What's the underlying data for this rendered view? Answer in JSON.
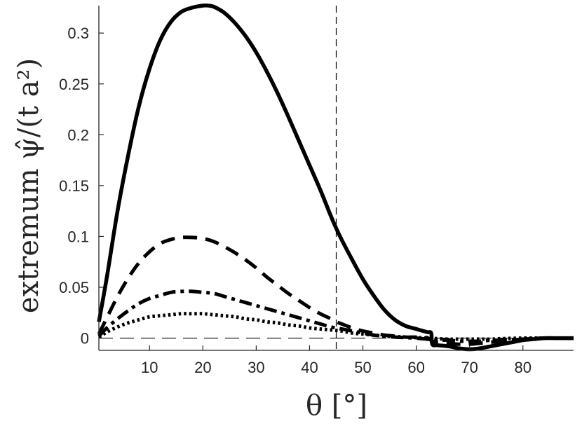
{
  "chart_data": {
    "type": "line",
    "title": "",
    "xlabel": "θ [°]",
    "ylabel": "extremum ψ̂/(t a²)",
    "xlim": [
      0.5,
      89.5
    ],
    "ylim": [
      -0.012,
      0.327
    ],
    "xticks": [
      10,
      20,
      30,
      40,
      50,
      60,
      70,
      80
    ],
    "xtick_labels": [
      "10",
      "20",
      "30",
      "40",
      "50",
      "60",
      "70",
      "80"
    ],
    "yticks": [
      0,
      0.05,
      0.1,
      0.15,
      0.2,
      0.25,
      0.3
    ],
    "ytick_labels": [
      "0",
      "0.05",
      "0.1",
      "0.15",
      "0.2",
      "0.25",
      "0.3"
    ],
    "grid": false,
    "legend": "none",
    "reference_lines": [
      {
        "orientation": "vertical",
        "value": 45,
        "style": "dashed-thin"
      },
      {
        "orientation": "horizontal",
        "value": 0,
        "style": "dashed-thin"
      }
    ],
    "series": [
      {
        "style": "solid",
        "x": [
          0.5,
          2,
          4,
          6,
          8,
          10,
          12,
          14,
          16,
          18,
          20,
          21,
          22,
          24,
          26,
          28,
          30,
          32,
          34,
          36,
          38,
          40,
          42,
          44,
          45,
          46,
          48,
          50,
          52,
          54,
          56,
          58,
          60,
          62,
          62.8,
          63,
          64,
          66,
          68,
          70,
          72,
          74,
          76,
          78,
          80,
          82,
          84,
          86,
          89.5
        ],
        "y": [
          0.016,
          0.06,
          0.125,
          0.18,
          0.228,
          0.265,
          0.293,
          0.311,
          0.321,
          0.325,
          0.327,
          0.327,
          0.326,
          0.32,
          0.31,
          0.297,
          0.281,
          0.262,
          0.241,
          0.218,
          0.194,
          0.17,
          0.146,
          0.12,
          0.108,
          0.097,
          0.077,
          0.058,
          0.042,
          0.028,
          0.018,
          0.012,
          0.009,
          0.006,
          0.005,
          -0.006,
          -0.007,
          -0.008,
          -0.01,
          -0.011,
          -0.01,
          -0.008,
          -0.006,
          -0.004,
          -0.002,
          -0.001,
          0,
          0,
          0
        ]
      },
      {
        "style": "dashed",
        "x": [
          0.5,
          2,
          4,
          6,
          8,
          10,
          12,
          14,
          16,
          18,
          20,
          22,
          24,
          26,
          28,
          30,
          32,
          34,
          36,
          38,
          40,
          42,
          44,
          45,
          46,
          48,
          50,
          52,
          54,
          56,
          58,
          60,
          62,
          63,
          64,
          66,
          68,
          70,
          72,
          74,
          76,
          78,
          80,
          84,
          89.5
        ],
        "y": [
          0.004,
          0.02,
          0.041,
          0.059,
          0.074,
          0.085,
          0.093,
          0.097,
          0.099,
          0.099,
          0.098,
          0.095,
          0.09,
          0.084,
          0.077,
          0.069,
          0.06,
          0.052,
          0.044,
          0.037,
          0.03,
          0.024,
          0.019,
          0.016,
          0.014,
          0.01,
          0.007,
          0.005,
          0.003,
          0.002,
          0.001,
          0.001,
          0.0005,
          -0.003,
          -0.004,
          -0.005,
          -0.006,
          -0.006,
          -0.005,
          -0.004,
          -0.003,
          -0.002,
          -0.001,
          0,
          0
        ]
      },
      {
        "style": "dash-dot",
        "x": [
          0.5,
          2,
          4,
          6,
          8,
          10,
          12,
          14,
          16,
          18,
          20,
          22,
          24,
          26,
          28,
          30,
          32,
          34,
          36,
          38,
          40,
          42,
          44,
          46,
          48,
          50,
          52,
          54,
          56,
          58,
          60,
          62,
          64,
          66,
          68,
          70,
          72,
          74,
          76,
          80,
          84,
          89.5
        ],
        "y": [
          0.002,
          0.01,
          0.019,
          0.027,
          0.034,
          0.039,
          0.042,
          0.045,
          0.046,
          0.046,
          0.045,
          0.044,
          0.041,
          0.038,
          0.035,
          0.032,
          0.029,
          0.026,
          0.023,
          0.02,
          0.017,
          0.014,
          0.011,
          0.009,
          0.007,
          0.005,
          0.003,
          0.002,
          0.001,
          0.0005,
          0,
          -0.001,
          -0.002,
          -0.002,
          -0.003,
          -0.003,
          -0.003,
          -0.002,
          -0.002,
          -0.001,
          0,
          0
        ]
      },
      {
        "style": "dotted",
        "x": [
          0.5,
          2,
          4,
          6,
          8,
          10,
          12,
          14,
          16,
          18,
          20,
          22,
          24,
          26,
          28,
          30,
          32,
          34,
          36,
          38,
          40,
          42,
          44,
          46,
          48,
          50,
          52,
          54,
          56,
          58,
          60,
          62,
          64,
          66,
          68,
          70,
          72,
          74,
          76,
          80,
          84,
          89.5
        ],
        "y": [
          0.001,
          0.006,
          0.011,
          0.015,
          0.018,
          0.021,
          0.022,
          0.023,
          0.024,
          0.024,
          0.024,
          0.023,
          0.022,
          0.021,
          0.019,
          0.018,
          0.016,
          0.015,
          0.013,
          0.012,
          0.01,
          0.009,
          0.008,
          0.007,
          0.005,
          0.004,
          0.003,
          0.002,
          0.0015,
          0.001,
          0.0005,
          0,
          -0.0005,
          -0.001,
          -0.001,
          -0.001,
          -0.001,
          -0.001,
          -0.0005,
          0,
          0,
          0
        ]
      }
    ]
  }
}
